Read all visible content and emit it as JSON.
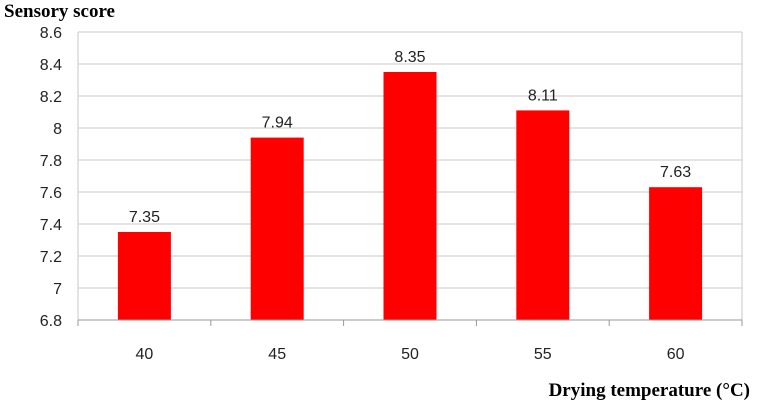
{
  "chart_data": {
    "type": "bar",
    "categories": [
      "40",
      "45",
      "50",
      "55",
      "60"
    ],
    "values": [
      7.35,
      7.94,
      8.35,
      8.11,
      7.63
    ],
    "data_labels": [
      "7.35",
      "7.94",
      "8.35",
      "8.11",
      "7.63"
    ],
    "title": "",
    "ylabel": "Sensory score",
    "xlabel": "Drying temperature (°C)",
    "ylim": [
      6.8,
      8.6
    ],
    "yticks": [
      "6.8",
      "7",
      "7.2",
      "7.4",
      "7.6",
      "7.8",
      "8",
      "8.2",
      "8.4",
      "8.6"
    ],
    "grid": true,
    "bar_color": "#ff0000",
    "grid_color": "#c8c8c8"
  }
}
